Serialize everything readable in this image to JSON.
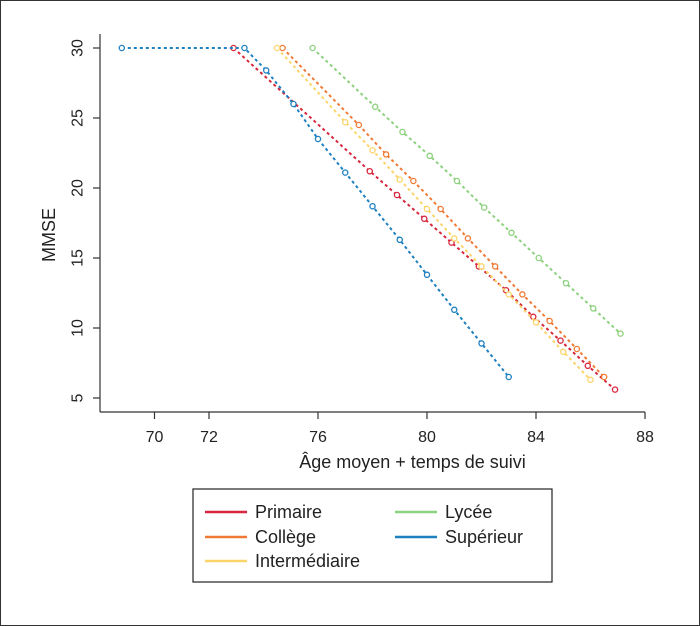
{
  "chart_data": {
    "type": "line",
    "xlabel": "Âge moyen + temps de suivi",
    "ylabel": "MMSE",
    "xlim": [
      68,
      88
    ],
    "ylim": [
      4,
      31
    ],
    "xticks": [
      70,
      72,
      76,
      80,
      84,
      88
    ],
    "yticks": [
      5,
      10,
      15,
      20,
      25,
      30
    ],
    "grid": false,
    "legend_position": "bottom",
    "series": [
      {
        "name": "Primaire",
        "color": "#d7263d",
        "points": [
          [
            72.9,
            30
          ],
          [
            77.9,
            21.2
          ],
          [
            78.9,
            19.5
          ],
          [
            79.9,
            17.8
          ],
          [
            80.9,
            16.1
          ],
          [
            81.9,
            14.4
          ],
          [
            82.9,
            12.7
          ],
          [
            83.9,
            10.8
          ],
          [
            84.9,
            9.1
          ],
          [
            85.9,
            7.3
          ],
          [
            86.9,
            5.6
          ]
        ]
      },
      {
        "name": "Collège",
        "color": "#f07a35",
        "points": [
          [
            74.7,
            30
          ],
          [
            77.5,
            24.5
          ],
          [
            78.5,
            22.4
          ],
          [
            79.5,
            20.5
          ],
          [
            80.5,
            18.5
          ],
          [
            81.5,
            16.4
          ],
          [
            82.5,
            14.4
          ],
          [
            83.5,
            12.4
          ],
          [
            84.5,
            10.5
          ],
          [
            85.5,
            8.5
          ],
          [
            86.5,
            6.5
          ]
        ]
      },
      {
        "name": "Intermédiaire",
        "color": "#fcd56a",
        "points": [
          [
            74.5,
            30
          ],
          [
            77.0,
            24.7
          ],
          [
            78.0,
            22.7
          ],
          [
            79.0,
            20.6
          ],
          [
            80.0,
            18.5
          ],
          [
            81.0,
            16.4
          ],
          [
            82.0,
            14.4
          ],
          [
            83.0,
            12.4
          ],
          [
            84.0,
            10.4
          ],
          [
            85.0,
            8.3
          ],
          [
            86.0,
            6.3
          ]
        ]
      },
      {
        "name": "Lycée",
        "color": "#8cd17d",
        "points": [
          [
            75.8,
            30
          ],
          [
            78.1,
            25.8
          ],
          [
            79.1,
            24.0
          ],
          [
            80.1,
            22.3
          ],
          [
            81.1,
            20.5
          ],
          [
            82.1,
            18.6
          ],
          [
            83.1,
            16.8
          ],
          [
            84.1,
            15.0
          ],
          [
            85.1,
            13.2
          ],
          [
            86.1,
            11.4
          ],
          [
            87.1,
            9.6
          ]
        ]
      },
      {
        "name": "Supérieur",
        "color": "#1f80c0",
        "points": [
          [
            68.8,
            30
          ],
          [
            73.3,
            30
          ],
          [
            74.1,
            28.4
          ],
          [
            75.1,
            26.0
          ],
          [
            76.0,
            23.5
          ],
          [
            77.0,
            21.1
          ],
          [
            78.0,
            18.7
          ],
          [
            79.0,
            16.3
          ],
          [
            80.0,
            13.8
          ],
          [
            81.0,
            11.3
          ],
          [
            82.0,
            8.9
          ],
          [
            83.0,
            6.5
          ]
        ]
      }
    ]
  }
}
